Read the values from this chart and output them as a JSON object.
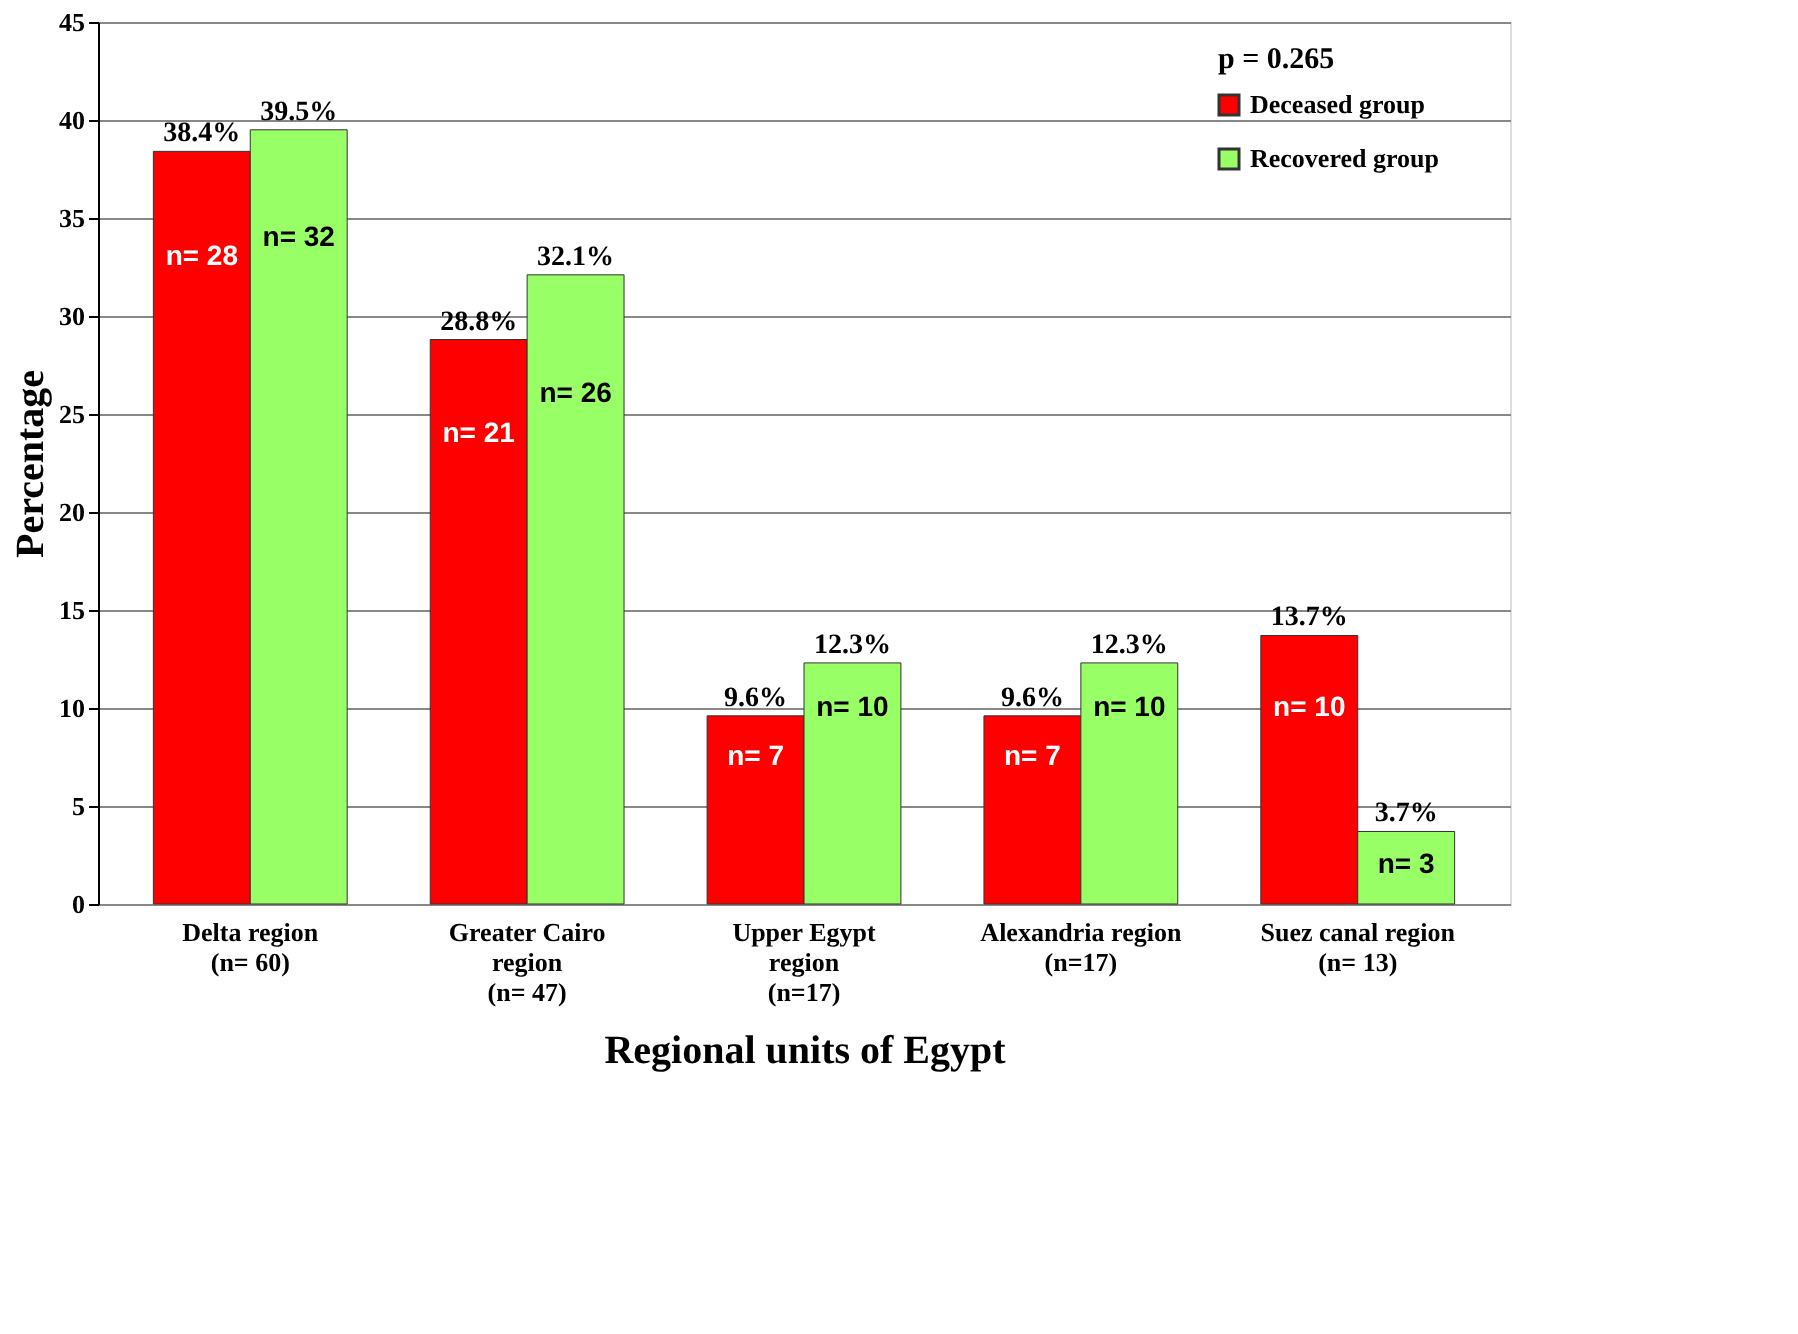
{
  "chart_data": {
    "type": "bar",
    "xlabel": "Regional units of Egypt",
    "ylabel": "Percentage",
    "categories": [
      "Delta region\n(n= 60)",
      "Greater Cairo\nregion\n(n= 47)",
      "Upper Egypt\nregion\n(n=17)",
      "Alexandria region\n(n=17)",
      "Suez canal region\n(n= 13)"
    ],
    "series": [
      {
        "name": "Deceased group",
        "color": "#ff0000",
        "values": [
          38.4,
          28.8,
          9.6,
          9.6,
          13.7
        ],
        "value_labels": [
          "38.4%",
          "28.8%",
          "9.6%",
          "9.6%",
          "13.7%"
        ]
      },
      {
        "name": "Recovered group",
        "color": "#99ff66",
        "values": [
          39.5,
          32.1,
          12.3,
          12.3,
          3.7
        ],
        "value_labels": [
          "39.5%",
          "32.1%",
          "12.3%",
          "12.3%",
          "3.7%"
        ]
      }
    ],
    "ylim": [
      0,
      45
    ],
    "yticks": [
      0,
      5,
      10,
      15,
      20,
      25,
      30,
      35,
      40,
      45
    ],
    "grid": "y",
    "legend": "top right",
    "annotations": [
      "p = 0.265",
      {
        "text": "n= 28",
        "x": "Delta region\n(n= 60)",
        "y": 33
      },
      {
        "text": "n= 32",
        "x": "Delta region\n(n= 60)",
        "y": 34
      },
      {
        "text": "n= 21",
        "x": "Greater Cairo\nregion\n(n= 47)",
        "y": 24
      },
      {
        "text": "n= 26",
        "x": "Greater Cairo\nregion\n(n= 47)",
        "y": 26
      },
      {
        "text": "n= 7",
        "x": "Upper Egypt\nregion\n(n=17)",
        "y": 7.5
      },
      {
        "text": "n= 10",
        "x": "Upper Egypt\nregion\n(n=17)",
        "y": 10
      },
      {
        "text": "n= 7",
        "x": "Alexandria region\n(n=17)",
        "y": 7.5
      },
      {
        "text": "n= 10",
        "x": "Alexandria region\n(n=17)",
        "y": 10
      },
      {
        "text": "n= 10",
        "x": "Suez canal region\n(n= 13)",
        "y": 10
      },
      {
        "text": "n= 3",
        "x": "Suez canal region\n(n= 13)",
        "y": 2
      }
    ]
  }
}
